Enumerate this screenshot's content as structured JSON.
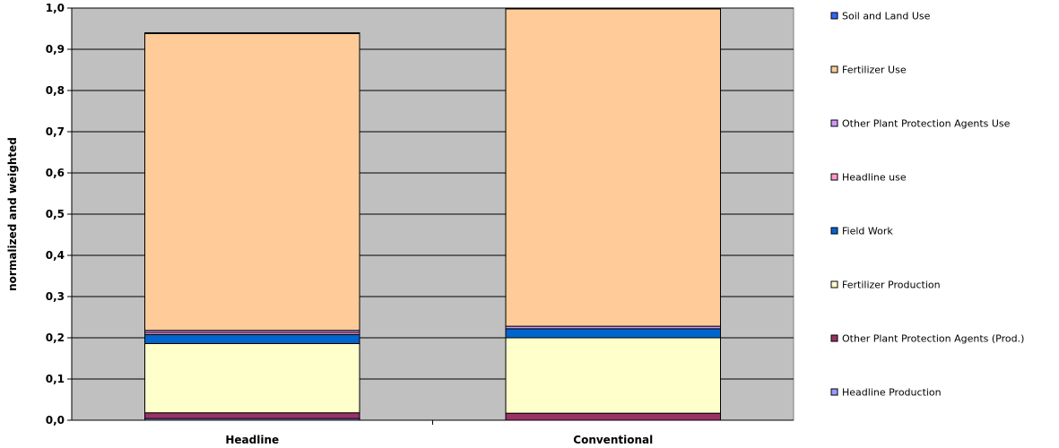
{
  "chart_data": {
    "type": "bar",
    "stacked": true,
    "categories": [
      "Headline",
      "Conventional"
    ],
    "ylabel": "normalized and weighted",
    "ylim": [
      0,
      1.0
    ],
    "yticks": [
      "0,0",
      "0,1",
      "0,2",
      "0,3",
      "0,4",
      "0,5",
      "0,6",
      "0,7",
      "0,8",
      "0,9",
      "1,0"
    ],
    "grid": true,
    "legend_position": "right",
    "plot_background": "#c0c0c0",
    "series": [
      {
        "name": "Headline Production",
        "color": "#9999ff",
        "values": [
          0.004,
          0.0
        ]
      },
      {
        "name": "Other Plant Protection Agents (Prod.)",
        "color": "#993366",
        "values": [
          0.014,
          0.017
        ]
      },
      {
        "name": "Fertilizer Production",
        "color": "#ffffcc",
        "values": [
          0.168,
          0.183
        ]
      },
      {
        "name": "Field Work",
        "color": "#0066cc",
        "values": [
          0.022,
          0.022
        ]
      },
      {
        "name": "Headline use",
        "color": "#ff99cc",
        "values": [
          0.005,
          0.0
        ]
      },
      {
        "name": "Other Plant Protection Agents Use",
        "color": "#cc99ff",
        "values": [
          0.005,
          0.006
        ]
      },
      {
        "name": "Fertilizer Use",
        "color": "#ffcc99",
        "values": [
          0.72,
          0.77
        ]
      },
      {
        "name": "Soil and Land Use",
        "color": "#3366ff",
        "values": [
          0.002,
          0.002
        ]
      }
    ],
    "legend_order": [
      "Soil and Land Use",
      "Fertilizer Use",
      "Other Plant Protection Agents Use",
      "Headline use",
      "Field Work",
      "Fertilizer Production",
      "Other Plant Protection Agents (Prod.)",
      "Headline Production"
    ]
  }
}
